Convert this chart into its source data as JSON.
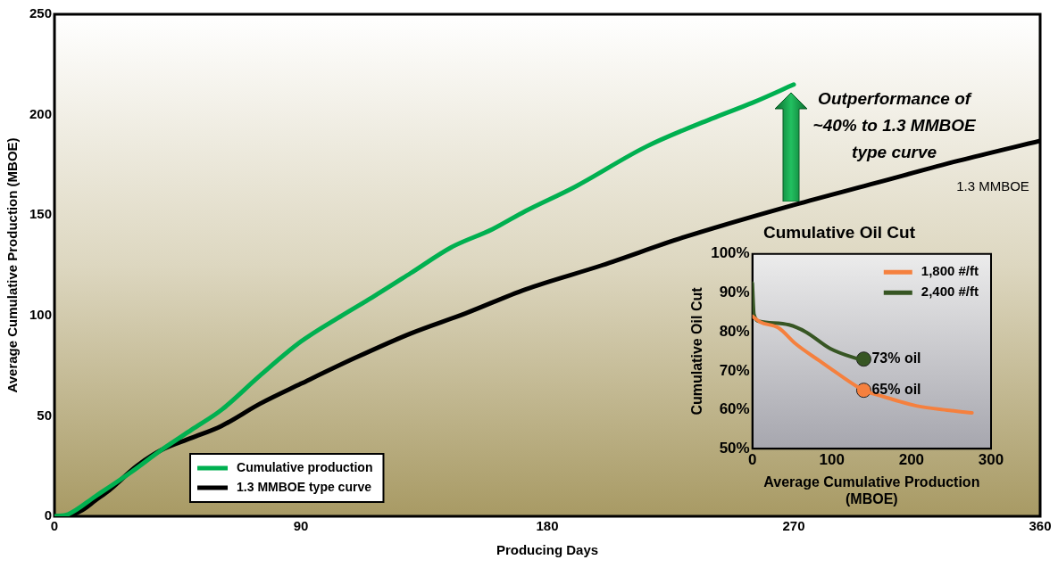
{
  "chart_data": [
    {
      "type": "line",
      "xlabel": "Producing Days",
      "ylabel": "Average Cumulative Production (MBOE)",
      "xlim": [
        0,
        360
      ],
      "xticks": [
        0,
        90,
        180,
        270,
        360
      ],
      "ylim": [
        0,
        250
      ],
      "yticks": [
        0,
        50,
        100,
        150,
        200,
        250
      ],
      "legend": "bottom left",
      "line_style": "solid",
      "series": [
        {
          "name": "Cumulative production",
          "color": "#00b050",
          "x": [
            0,
            5,
            15,
            28,
            39,
            50,
            61,
            75,
            90,
            105,
            116,
            130,
            145,
            160,
            172,
            190,
            216,
            240,
            255,
            270
          ],
          "values": [
            0,
            1,
            10,
            22,
            33,
            43,
            53,
            70,
            87,
            100,
            109,
            121,
            134,
            143,
            152,
            164,
            184,
            198,
            206,
            215
          ]
        },
        {
          "name": "1.3 MMBOE type curve",
          "color": "#000000",
          "x": [
            0,
            4,
            10,
            15,
            20,
            30,
            39,
            50,
            61,
            75,
            90,
            110,
            130,
            150,
            172,
            200,
            230,
            270,
            300,
            330,
            360
          ],
          "values": [
            0,
            0,
            3,
            8,
            13,
            25,
            33,
            39,
            45,
            56,
            66,
            79,
            91,
            101,
            113,
            125,
            139,
            155,
            166,
            177,
            187
          ]
        }
      ],
      "annotations": [
        "Outperformance of ~40% to 1.3 MMBOE type curve",
        "1.3 MMBOE"
      ]
    },
    {
      "type": "line",
      "title": "Cumulative Oil Cut",
      "xlabel": "Average Cumulative Production (MBOE)",
      "ylabel": "Cumulative Oil Cut",
      "xlim": [
        0,
        300
      ],
      "xticks": [
        0,
        100,
        200,
        300
      ],
      "ylim": [
        50,
        100
      ],
      "yticks": [
        {
          "value": 50,
          "label": "50%"
        },
        {
          "value": 60,
          "label": "60%"
        },
        {
          "value": 70,
          "label": "70%"
        },
        {
          "value": 80,
          "label": "80%"
        },
        {
          "value": 90,
          "label": "90%"
        },
        {
          "value": 100,
          "label": "100%"
        }
      ],
      "legend": "top right",
      "line_style": "solid",
      "series": [
        {
          "name": "1,800 #/ft",
          "color": "#f5803e",
          "x": [
            0,
            10,
            33,
            54,
            84,
            110,
            140,
            163,
            206,
            250,
            276
          ],
          "values": [
            84,
            82.5,
            81,
            77,
            72.6,
            68.9,
            65,
            63.5,
            61,
            59.8,
            59.2
          ]
        },
        {
          "name": "2,400 #/ft",
          "color": "#375623",
          "x": [
            0,
            2,
            9,
            46,
            67,
            98,
            140
          ],
          "values": [
            92.5,
            84.5,
            82.7,
            81.8,
            80,
            75.7,
            72.5
          ]
        },
        {
          "type": "scatter",
          "color": "#375623",
          "x": [
            140
          ],
          "values": [
            73
          ]
        },
        {
          "type": "scatter",
          "color": "#f5803e",
          "x": [
            140
          ],
          "values": [
            65
          ]
        }
      ],
      "annotations": [
        {
          "text": "73% oil",
          "x": 140,
          "y": 73
        },
        {
          "text": "65% oil",
          "x": 140,
          "y": 65
        }
      ]
    }
  ]
}
